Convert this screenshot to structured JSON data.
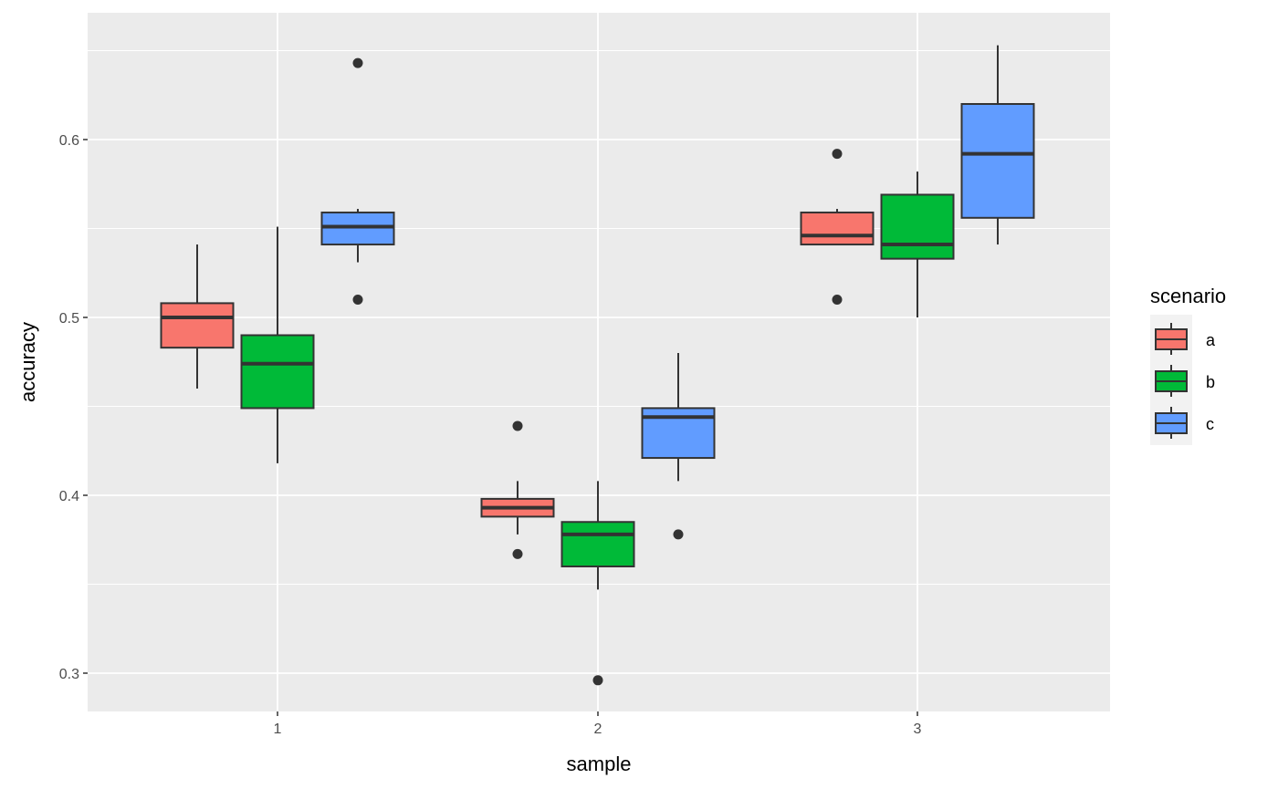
{
  "chart_data": {
    "type": "boxplot",
    "xlabel": "sample",
    "ylabel": "accuracy",
    "categories": [
      "1",
      "2",
      "3"
    ],
    "yticks": [
      "0.3",
      "0.4",
      "0.5",
      "0.6"
    ],
    "ylim": [
      0.277,
      0.67
    ],
    "grid": true,
    "legend": {
      "title": "scenario",
      "position": "right"
    },
    "series": [
      {
        "name": "a",
        "color": "#F8766D",
        "boxes": [
          {
            "category": "1",
            "whisker_low": 0.46,
            "q1": 0.483,
            "median": 0.5,
            "q3": 0.508,
            "whisker_high": 0.541,
            "outliers": []
          },
          {
            "category": "2",
            "whisker_low": 0.378,
            "q1": 0.388,
            "median": 0.393,
            "q3": 0.398,
            "whisker_high": 0.408,
            "outliers": [
              0.439,
              0.367
            ]
          },
          {
            "category": "3",
            "whisker_low": 0.541,
            "q1": 0.541,
            "median": 0.546,
            "q3": 0.559,
            "whisker_high": 0.561,
            "outliers": [
              0.592,
              0.51
            ]
          }
        ]
      },
      {
        "name": "b",
        "color": "#00BA38",
        "boxes": [
          {
            "category": "1",
            "whisker_low": 0.418,
            "q1": 0.449,
            "median": 0.474,
            "q3": 0.49,
            "whisker_high": 0.551,
            "outliers": []
          },
          {
            "category": "2",
            "whisker_low": 0.347,
            "q1": 0.36,
            "median": 0.378,
            "q3": 0.385,
            "whisker_high": 0.408,
            "outliers": [
              0.296
            ]
          },
          {
            "category": "3",
            "whisker_low": 0.5,
            "q1": 0.533,
            "median": 0.541,
            "q3": 0.569,
            "whisker_high": 0.582,
            "outliers": []
          }
        ]
      },
      {
        "name": "c",
        "color": "#619CFF",
        "boxes": [
          {
            "category": "1",
            "whisker_low": 0.531,
            "q1": 0.541,
            "median": 0.551,
            "q3": 0.559,
            "whisker_high": 0.561,
            "outliers": [
              0.643,
              0.51
            ]
          },
          {
            "category": "2",
            "whisker_low": 0.408,
            "q1": 0.421,
            "median": 0.444,
            "q3": 0.449,
            "whisker_high": 0.48,
            "outliers": [
              0.378
            ]
          },
          {
            "category": "3",
            "whisker_low": 0.541,
            "q1": 0.556,
            "median": 0.592,
            "q3": 0.62,
            "whisker_high": 0.653,
            "outliers": []
          }
        ]
      }
    ]
  }
}
